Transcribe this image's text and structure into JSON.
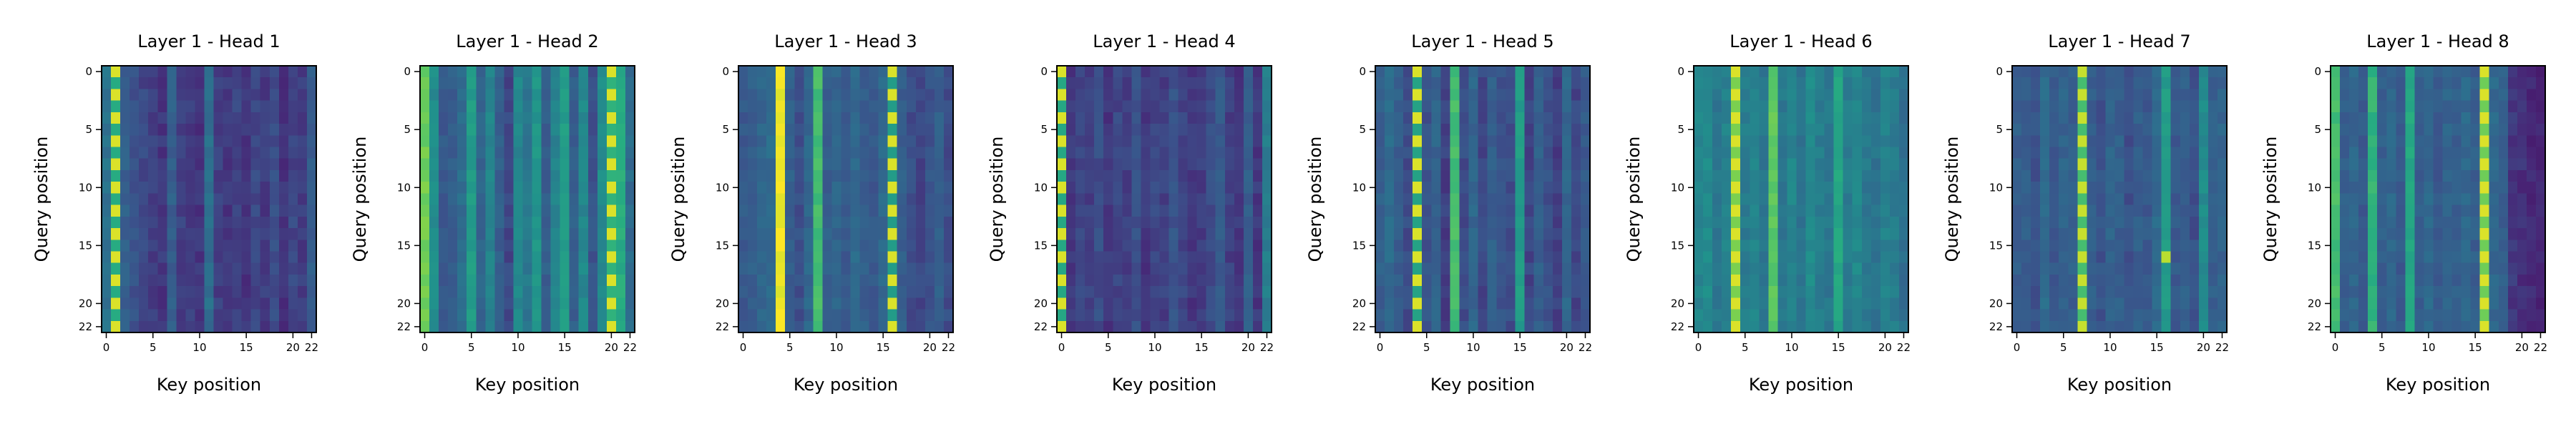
{
  "chart_data": [
    {
      "type": "heatmap",
      "title": "Layer 1 - Head 1",
      "xlabel": "Key position",
      "ylabel": "Query position",
      "x_range": [
        0,
        22
      ],
      "y_range": [
        0,
        22
      ],
      "xticks": [
        0,
        5,
        10,
        15,
        20,
        22
      ],
      "yticks": [
        0,
        5,
        10,
        15,
        20,
        22
      ],
      "colormap": "viridis",
      "base": [
        0.38,
        0.95,
        0.3,
        0.26,
        0.22,
        0.2,
        0.18,
        0.3,
        0.2,
        0.19,
        0.17,
        0.36,
        0.2,
        0.18,
        0.21,
        0.17,
        0.22,
        0.19,
        0.24,
        0.17,
        0.22,
        0.2,
        0.3
      ],
      "stripes": [
        {
          "col": 1,
          "values": [
            0.95,
            0.62
          ]
        }
      ]
    },
    {
      "type": "heatmap",
      "title": "Layer 1 - Head 2",
      "xlabel": "Key position",
      "ylabel": "Query position",
      "x_range": [
        0,
        22
      ],
      "y_range": [
        0,
        22
      ],
      "xticks": [
        0,
        5,
        10,
        15,
        20,
        22
      ],
      "yticks": [
        0,
        5,
        10,
        15,
        20,
        22
      ],
      "colormap": "viridis",
      "base": [
        0.78,
        0.48,
        0.28,
        0.3,
        0.36,
        0.55,
        0.32,
        0.45,
        0.3,
        0.22,
        0.46,
        0.4,
        0.52,
        0.3,
        0.44,
        0.55,
        0.3,
        0.46,
        0.26,
        0.48,
        0.95,
        0.62,
        0.35
      ],
      "stripes": [
        {
          "col": 20,
          "values": [
            0.95,
            0.65
          ]
        }
      ]
    },
    {
      "type": "heatmap",
      "title": "Layer 1 - Head 3",
      "xlabel": "Key position",
      "ylabel": "Query position",
      "x_range": [
        0,
        22
      ],
      "y_range": [
        0,
        22
      ],
      "xticks": [
        0,
        5,
        10,
        15,
        20,
        22
      ],
      "yticks": [
        0,
        5,
        10,
        15,
        20,
        22
      ],
      "colormap": "viridis",
      "base": [
        0.28,
        0.3,
        0.33,
        0.35,
        0.98,
        0.3,
        0.25,
        0.33,
        0.7,
        0.3,
        0.33,
        0.28,
        0.34,
        0.3,
        0.27,
        0.34,
        0.88,
        0.3,
        0.24,
        0.22,
        0.26,
        0.3,
        0.24
      ],
      "stripes": [
        {
          "col": 16,
          "values": [
            0.95,
            0.55
          ]
        }
      ]
    },
    {
      "type": "heatmap",
      "title": "Layer 1 - Head 4",
      "xlabel": "Key position",
      "ylabel": "Query position",
      "x_range": [
        0,
        22
      ],
      "y_range": [
        0,
        22
      ],
      "xticks": [
        0,
        5,
        10,
        15,
        20,
        22
      ],
      "yticks": [
        0,
        5,
        10,
        15,
        20,
        22
      ],
      "colormap": "viridis",
      "base": [
        0.75,
        0.18,
        0.22,
        0.2,
        0.24,
        0.18,
        0.22,
        0.2,
        0.25,
        0.18,
        0.22,
        0.2,
        0.26,
        0.22,
        0.18,
        0.2,
        0.24,
        0.28,
        0.2,
        0.18,
        0.3,
        0.18,
        0.42
      ],
      "stripes": [
        {
          "col": 0,
          "values": [
            0.95,
            0.6
          ]
        }
      ]
    },
    {
      "type": "heatmap",
      "title": "Layer 1 - Head 5",
      "xlabel": "Key position",
      "ylabel": "Query position",
      "x_range": [
        0,
        22
      ],
      "y_range": [
        0,
        22
      ],
      "xticks": [
        0,
        5,
        10,
        15,
        20,
        22
      ],
      "yticks": [
        0,
        5,
        10,
        15,
        20,
        22
      ],
      "colormap": "viridis",
      "base": [
        0.3,
        0.35,
        0.3,
        0.24,
        0.7,
        0.26,
        0.32,
        0.2,
        0.7,
        0.24,
        0.33,
        0.22,
        0.3,
        0.26,
        0.24,
        0.55,
        0.22,
        0.3,
        0.25,
        0.2,
        0.33,
        0.22,
        0.28
      ],
      "stripes": [
        {
          "col": 4,
          "values": [
            0.95,
            0.58
          ]
        }
      ]
    },
    {
      "type": "heatmap",
      "title": "Layer 1 - Head 6",
      "xlabel": "Key position",
      "ylabel": "Query position",
      "x_range": [
        0,
        22
      ],
      "y_range": [
        0,
        22
      ],
      "xticks": [
        0,
        5,
        10,
        15,
        20,
        22
      ],
      "yticks": [
        0,
        5,
        10,
        15,
        20,
        22
      ],
      "colormap": "viridis",
      "base": [
        0.45,
        0.48,
        0.4,
        0.44,
        0.85,
        0.42,
        0.45,
        0.4,
        0.75,
        0.4,
        0.45,
        0.38,
        0.48,
        0.42,
        0.4,
        0.6,
        0.42,
        0.46,
        0.4,
        0.38,
        0.44,
        0.42,
        0.36
      ],
      "stripes": [
        {
          "col": 4,
          "values": [
            0.95,
            0.8
          ]
        }
      ]
    },
    {
      "type": "heatmap",
      "title": "Layer 1 - Head 7",
      "xlabel": "Key position",
      "ylabel": "Query position",
      "x_range": [
        0,
        22
      ],
      "y_range": [
        0,
        22
      ],
      "xticks": [
        0,
        5,
        10,
        15,
        20,
        22
      ],
      "yticks": [
        0,
        5,
        10,
        15,
        20,
        22
      ],
      "colormap": "viridis",
      "base": [
        0.3,
        0.3,
        0.26,
        0.35,
        0.28,
        0.32,
        0.3,
        0.85,
        0.3,
        0.26,
        0.32,
        0.3,
        0.25,
        0.3,
        0.28,
        0.35,
        0.55,
        0.28,
        0.3,
        0.25,
        0.48,
        0.3,
        0.32
      ],
      "stripes": [
        {
          "col": 7,
          "values": [
            0.92,
            0.7
          ]
        }
      ],
      "hotspots": [
        {
          "row": 16,
          "col": 16,
          "value": 0.9
        }
      ]
    },
    {
      "type": "heatmap",
      "title": "Layer 1 - Head 8",
      "xlabel": "Key position",
      "ylabel": "Query position",
      "x_range": [
        0,
        22
      ],
      "y_range": [
        0,
        22
      ],
      "xticks": [
        0,
        5,
        10,
        15,
        20,
        22
      ],
      "yticks": [
        0,
        5,
        10,
        15,
        20,
        22
      ],
      "colormap": "viridis",
      "base": [
        0.7,
        0.3,
        0.33,
        0.28,
        0.65,
        0.3,
        0.33,
        0.28,
        0.6,
        0.3,
        0.34,
        0.28,
        0.32,
        0.3,
        0.34,
        0.3,
        0.9,
        0.34,
        0.3,
        0.18,
        0.16,
        0.14,
        0.13
      ],
      "stripes": [
        {
          "col": 16,
          "values": [
            0.95,
            0.78
          ]
        }
      ]
    }
  ]
}
